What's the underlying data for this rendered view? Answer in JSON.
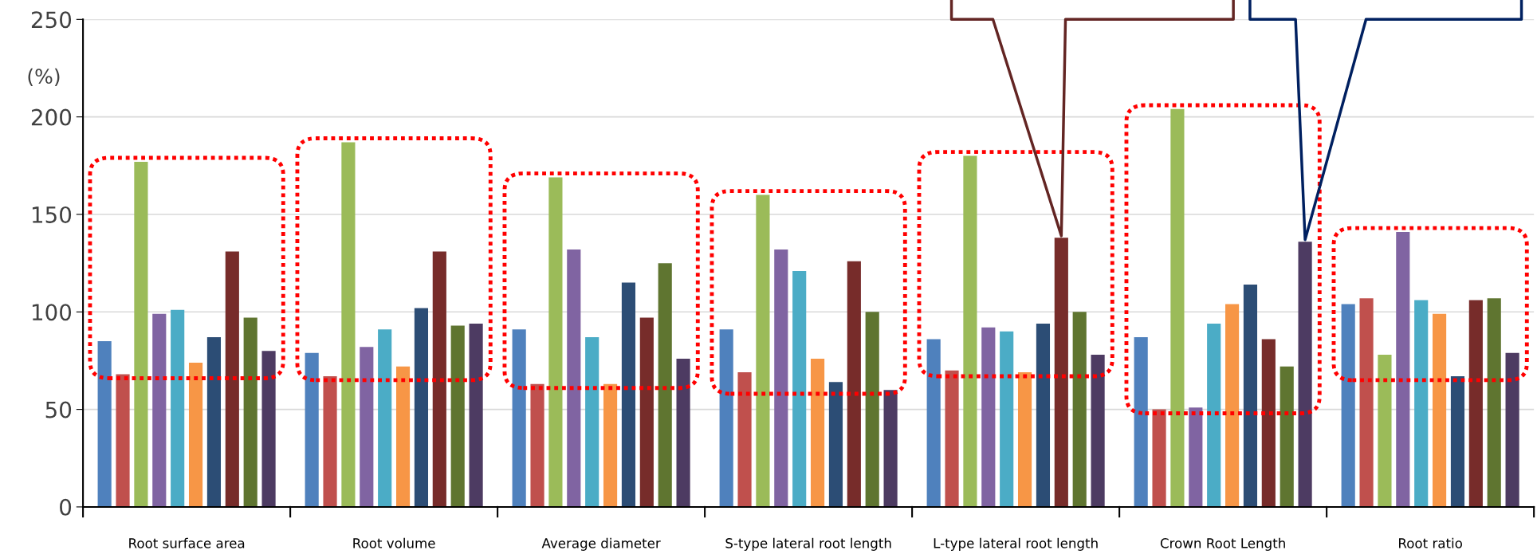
{
  "chart_data": {
    "type": "bar",
    "ylabel": "(%)",
    "categories": [
      "Root surface area",
      "Root volume",
      "Average diameter",
      "S-type lateral root length",
      "L-type lateral root length",
      "Crown Root Length",
      "Root ratio"
    ],
    "series": [
      {
        "color": "#4f81bd",
        "values": [
          85,
          79,
          91,
          91,
          86,
          87,
          104
        ]
      },
      {
        "color": "#c0504d",
        "values": [
          68,
          67,
          63,
          69,
          70,
          50,
          107
        ]
      },
      {
        "color": "#9bbb59",
        "values": [
          177,
          187,
          169,
          160,
          180,
          204,
          78
        ]
      },
      {
        "color": "#8064a2",
        "values": [
          99,
          82,
          132,
          132,
          92,
          51,
          141
        ]
      },
      {
        "color": "#4bacc6",
        "values": [
          101,
          91,
          87,
          121,
          90,
          94,
          106
        ]
      },
      {
        "color": "#f79646",
        "values": [
          74,
          72,
          63,
          76,
          69,
          104,
          99
        ]
      },
      {
        "color": "#2c4d75",
        "values": [
          87,
          102,
          115,
          64,
          94,
          114,
          67
        ]
      },
      {
        "color": "#772c2a",
        "values": [
          131,
          131,
          97,
          126,
          138,
          86,
          106
        ]
      },
      {
        "color": "#5f7530",
        "values": [
          97,
          93,
          125,
          100,
          100,
          72,
          107
        ]
      },
      {
        "color": "#4d3b62",
        "values": [
          80,
          94,
          76,
          60,
          78,
          136,
          79
        ]
      }
    ],
    "ylim": [
      0,
      250
    ],
    "yticks": [
      0,
      50,
      100,
      150,
      200,
      250
    ],
    "grid": "y",
    "legend": false
  }
}
